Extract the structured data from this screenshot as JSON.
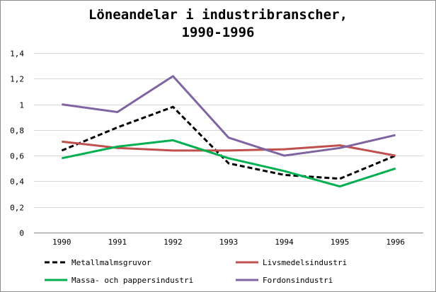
{
  "chart_data": {
    "type": "line",
    "title_line1": "Löneandelar i industribranscher,",
    "title_line2": "1990-1996",
    "categories": [
      "1990",
      "1991",
      "1992",
      "1993",
      "1994",
      "1995",
      "1996"
    ],
    "ylim": [
      0,
      1.4
    ],
    "y_ticks": [
      0,
      0.2,
      0.4,
      0.6,
      0.8,
      1.0,
      1.2,
      1.4
    ],
    "y_tick_labels": [
      "0",
      "0,2",
      "0,4",
      "0,6",
      "0,8",
      "1",
      "1,2",
      "1,4"
    ],
    "grid": true,
    "legend_position": "bottom",
    "series": [
      {
        "name": "Metallmalmsgruvor",
        "color": "#000000",
        "dash": true,
        "values": [
          0.64,
          0.82,
          0.98,
          0.54,
          0.45,
          0.42,
          0.6
        ]
      },
      {
        "name": "Livsmedelsindustri",
        "color": "#c0504d",
        "dash": false,
        "values": [
          0.71,
          0.66,
          0.64,
          0.64,
          0.65,
          0.68,
          0.6
        ]
      },
      {
        "name": "Massa- och pappersindustri",
        "color": "#00b050",
        "dash": false,
        "values": [
          0.58,
          0.67,
          0.72,
          0.58,
          0.48,
          0.36,
          0.5
        ]
      },
      {
        "name": "Fordonsindustri",
        "color": "#8064a2",
        "dash": false,
        "values": [
          1.0,
          0.94,
          1.22,
          0.74,
          0.6,
          0.66,
          0.76
        ]
      }
    ]
  }
}
